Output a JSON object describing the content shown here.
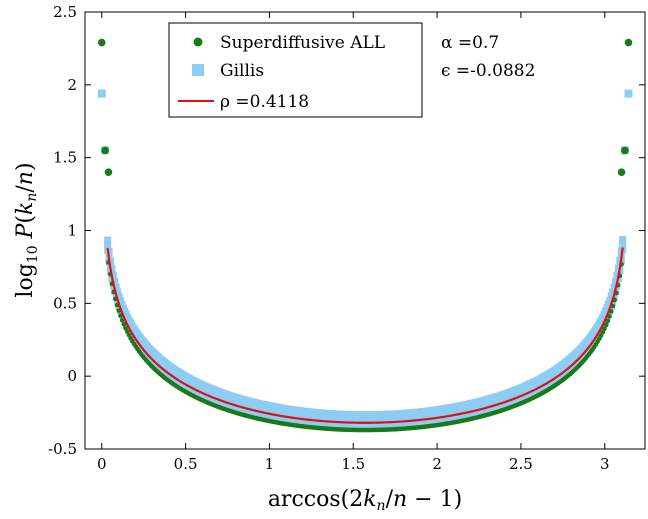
{
  "chart_data": {
    "type": "scatter",
    "xlabel": "arccos(2k_n/n − 1)",
    "ylabel": "log10 P(k_n/n)",
    "xlim": [
      -0.1,
      3.24
    ],
    "ylim": [
      -0.5,
      2.5
    ],
    "xticks": [
      0,
      0.5,
      1,
      1.5,
      2,
      2.5,
      3
    ],
    "xtick_labels": [
      "0",
      "0.5",
      "1",
      "1.5",
      "2",
      "2.5",
      "3"
    ],
    "yticks": [
      -0.5,
      0,
      0.5,
      1,
      1.5,
      2,
      2.5
    ],
    "ytick_labels": [
      "-0.5",
      "0",
      "0.5",
      "1",
      "1.5",
      "2",
      "2.5"
    ],
    "grid": false,
    "legend_position": "top-center",
    "series": [
      {
        "name": "Superdiffusive ALL",
        "kind": "scatter",
        "marker": "circle",
        "color": "#1a7a1a",
        "rho": 0.4118,
        "offset": -0.05,
        "isolated_points": [
          [
            0,
            2.29
          ],
          [
            3.1416,
            2.29
          ],
          [
            0.02,
            1.55
          ],
          [
            3.12,
            1.55
          ],
          [
            0.04,
            1.4
          ],
          [
            3.1,
            1.4
          ]
        ]
      },
      {
        "name": "Gillis",
        "kind": "scatter",
        "marker": "square",
        "color": "#8ecdf3",
        "rho": 0.4118,
        "offset": 0.02,
        "isolated_points": [
          [
            0,
            1.94
          ],
          [
            3.1416,
            1.94
          ],
          [
            0.02,
            1.55
          ],
          [
            3.12,
            1.55
          ]
        ]
      },
      {
        "name": "ρ =0.4118",
        "kind": "line",
        "color": "#e01010",
        "rho": 0.4118,
        "x_range": [
          0.035,
          3.107
        ]
      }
    ],
    "annotations": [
      "α =0.7",
      "ϵ =-0.0882"
    ]
  }
}
